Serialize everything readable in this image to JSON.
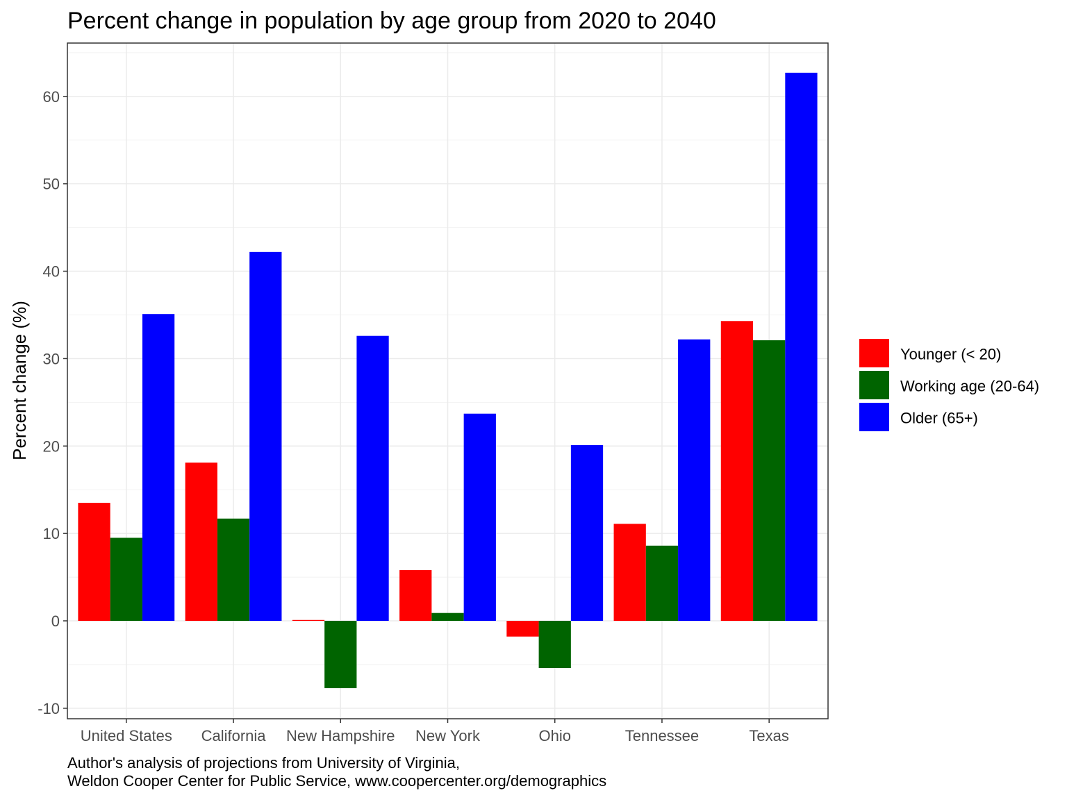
{
  "chart_data": {
    "type": "bar",
    "title": "Percent change in population by age group from 2020 to 2040",
    "xlabel": "",
    "ylabel": "Percent change (%)",
    "categories": [
      "United States",
      "California",
      "New Hampshire",
      "New York",
      "Ohio",
      "Tennessee",
      "Texas"
    ],
    "series": [
      {
        "name": "Younger (< 20)",
        "color": "#ff0000",
        "values": [
          13.5,
          18.1,
          0.1,
          5.8,
          -1.8,
          11.1,
          34.3
        ]
      },
      {
        "name": "Working age (20-64)",
        "color": "#006400",
        "values": [
          9.5,
          11.7,
          -7.7,
          0.9,
          -5.4,
          8.6,
          32.1
        ]
      },
      {
        "name": "Older (65+)",
        "color": "#0000ff",
        "values": [
          35.1,
          42.2,
          32.6,
          23.7,
          20.1,
          32.2,
          62.7
        ]
      }
    ],
    "ylim": [
      -11.2,
      66.1
    ],
    "yticks": [
      -10,
      0,
      10,
      20,
      30,
      40,
      50,
      60
    ],
    "grid": true,
    "legend_position": "right",
    "caption": [
      "Author's analysis of projections from University of Virginia,",
      "Weldon Cooper Center for Public Service, www.coopercenter.org/demographics"
    ]
  }
}
